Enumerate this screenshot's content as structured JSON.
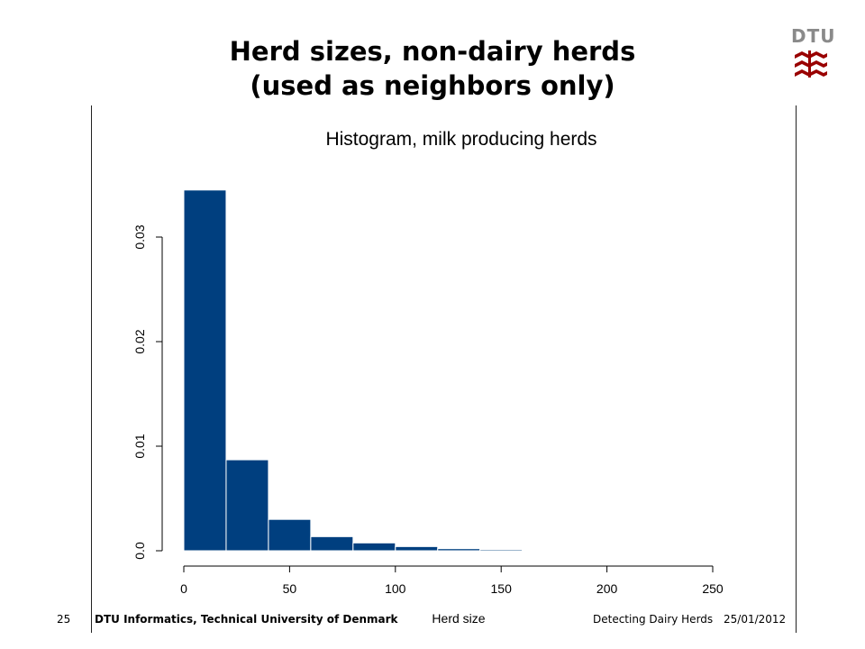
{
  "slide": {
    "title_line1": "Herd sizes, non-dairy herds",
    "title_line2": "(used as neighbors only)",
    "logo_text": "DTU"
  },
  "footer": {
    "page_number": "25",
    "organization": "DTU Informatics, Technical University of Denmark",
    "presentation": "Detecting Dairy Herds",
    "date": "25/01/2012"
  },
  "colors": {
    "bar_fill": "#003f7f",
    "logo_red": "#990000",
    "logo_grey": "#8a8a8a"
  },
  "chart_data": {
    "type": "bar",
    "title": "Histogram, milk producing herds",
    "xlabel": "Herd size",
    "ylabel": "",
    "xlim": [
      0,
      250
    ],
    "ylim": [
      0,
      0.034
    ],
    "x_ticks": [
      "0",
      "50",
      "100",
      "150",
      "200",
      "250"
    ],
    "y_ticks": [
      "0.0",
      "0.01",
      "0.02",
      "0.03"
    ],
    "grid": false,
    "bins": [
      {
        "start": 0,
        "end": 20,
        "value": 0.0345
      },
      {
        "start": 20,
        "end": 40,
        "value": 0.0087
      },
      {
        "start": 40,
        "end": 60,
        "value": 0.003
      },
      {
        "start": 60,
        "end": 80,
        "value": 0.00135
      },
      {
        "start": 80,
        "end": 100,
        "value": 0.00075
      },
      {
        "start": 100,
        "end": 120,
        "value": 0.0004
      },
      {
        "start": 120,
        "end": 140,
        "value": 0.0002
      },
      {
        "start": 140,
        "end": 160,
        "value": 0.00012
      },
      {
        "start": 160,
        "end": 180,
        "value": 7e-05
      },
      {
        "start": 180,
        "end": 200,
        "value": 5e-05
      },
      {
        "start": 200,
        "end": 220,
        "value": 4e-05
      }
    ]
  }
}
